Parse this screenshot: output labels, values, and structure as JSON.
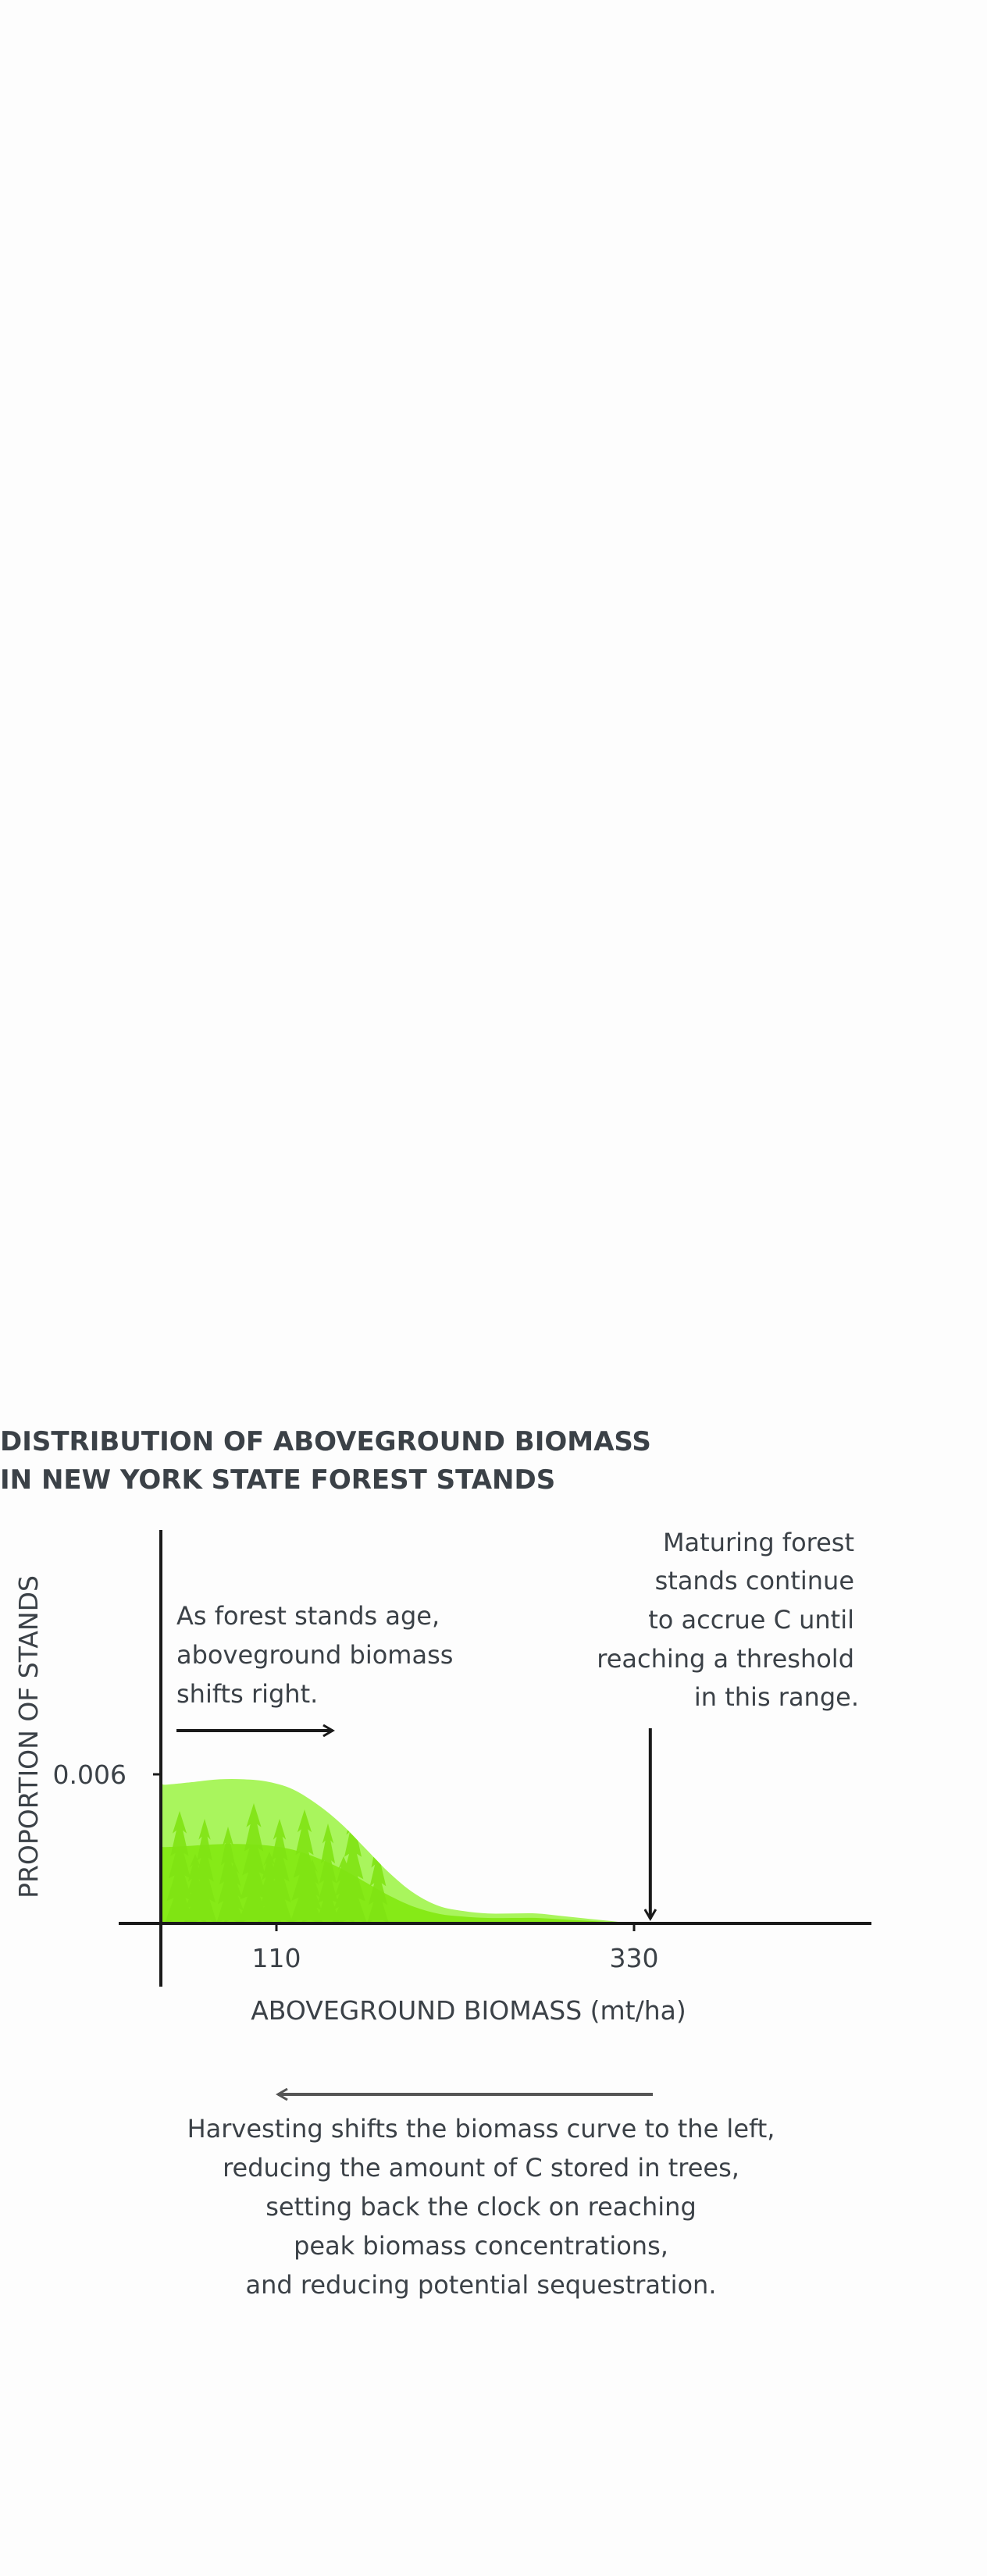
{
  "chart_data": {
    "type": "area",
    "title_lines": [
      "DISTRIBUTION OF ABOVEGROUND BIOMASS",
      "IN NEW YORK STATE FOREST STANDS"
    ],
    "xlabel": "ABOVEGROUND BIOMASS (mt/ha)",
    "ylabel": "PROPORTION OF STANDS",
    "xlim": [
      -20,
      570
    ],
    "ylim": [
      0,
      0.0065
    ],
    "x_ticks": [
      {
        "value": 110,
        "label": "110"
      },
      {
        "value": 330,
        "label": "330"
      }
    ],
    "y_ticks": [
      {
        "value": 0.006,
        "label": "0.006"
      }
    ],
    "grid": false,
    "series": [
      {
        "x": [
          0,
          15,
          30,
          45,
          60,
          75,
          90,
          105,
          120,
          135,
          150,
          165,
          180,
          195,
          210,
          225,
          240,
          255,
          270,
          285,
          300,
          315,
          330,
          345
        ],
        "values": [
          0.006,
          0.0058,
          0.0056,
          0.0056,
          0.0057,
          0.0058,
          0.0058,
          0.0057,
          0.0054,
          0.0048,
          0.004,
          0.003,
          0.002,
          0.0012,
          0.0007,
          0.0005,
          0.0004,
          0.0004,
          0.0004,
          0.0003,
          0.0002,
          0.0001,
          0.0,
          0.0
        ]
      }
    ],
    "colors": {
      "fill_light": "#a9f55d",
      "fill_dark": "#86ea17",
      "tree_dark": "#7fe012",
      "ink": "#1a1a1a",
      "text": "#3b4147",
      "arrow_gray": "#555555"
    },
    "annotations": {
      "age_note": [
        "As forest stands age,",
        "aboveground biomass",
        "shifts right."
      ],
      "threshold_note": [
        "Maturing forest",
        "stands continue",
        "to accrue C until",
        "reaching a threshold",
        "in this range."
      ],
      "threshold_x": 340,
      "harvest_note": [
        "Harvesting shifts the biomass curve to the left,",
        "reducing the amount of C stored in trees,",
        "setting back the clock on reaching",
        "peak biomass concentrations,",
        "and reducing potential sequestration."
      ]
    }
  }
}
